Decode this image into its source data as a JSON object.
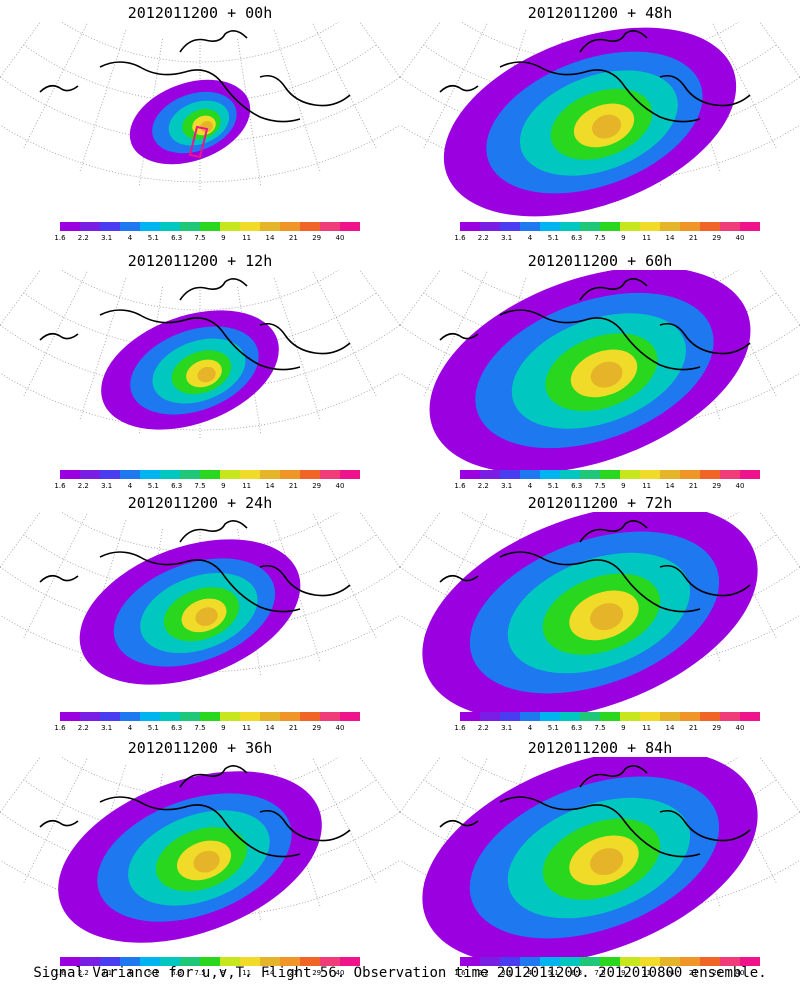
{
  "panels": [
    {
      "title": "2012011200 + 00h",
      "spread": 0.25
    },
    {
      "title": "2012011200 + 12h",
      "spread": 0.45
    },
    {
      "title": "2012011200 + 24h",
      "spread": 0.6
    },
    {
      "title": "2012011200 + 36h",
      "spread": 0.75
    },
    {
      "title": "2012011200 + 48h",
      "spread": 0.85
    },
    {
      "title": "2012011200 + 60h",
      "spread": 0.95
    },
    {
      "title": "2012011200 + 72h",
      "spread": 1.0
    },
    {
      "title": "2012011200 + 84h",
      "spread": 1.0
    }
  ],
  "colorbar": {
    "colors": [
      "#9b00e0",
      "#7a1ee6",
      "#4a3cf0",
      "#1e78f0",
      "#00b4f0",
      "#00c8c0",
      "#1ec878",
      "#28d71e",
      "#c8e61e",
      "#f0dc28",
      "#e6b428",
      "#f09628",
      "#f06428",
      "#f03c78",
      "#f0148c"
    ],
    "labels": [
      "1.6",
      "2.2",
      "3.1",
      "4",
      "5.1",
      "6.3",
      "7.5",
      "9",
      "11",
      "14",
      "21",
      "29",
      "40"
    ]
  },
  "footer": "Signal Variance for u,v,T. Flight 56. Observation time 2012011200. 2012010800 ensemble."
}
